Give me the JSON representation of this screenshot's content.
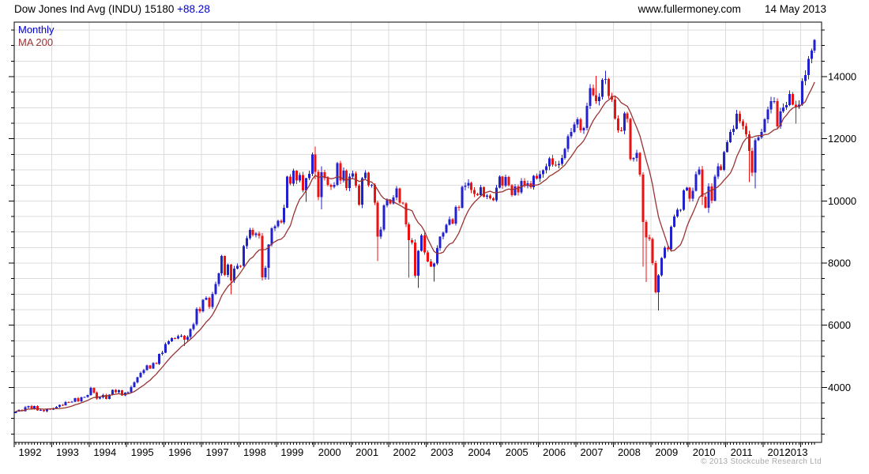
{
  "header": {
    "symbol": "Dow Jones Ind Avg (INDU)",
    "last": "15180",
    "change": "+88.28",
    "website": "www.fullermoney.com",
    "date": "14 May 2013"
  },
  "legend": {
    "series": [
      {
        "label": "Monthly",
        "color": "#0000cc"
      },
      {
        "label": "MA 200",
        "color": "#993333"
      }
    ]
  },
  "footer": {
    "copyright": "© 2013 Stockcube Research Ltd"
  },
  "chart_data": {
    "type": "candlestick",
    "symbol": "Dow Jones Ind Avg (INDU)",
    "interval": "Monthly",
    "overlay": "MA 200",
    "legend_position": "top-left",
    "grid": true,
    "x_start": "1992-01",
    "x_end": "2013-05",
    "x_tick_labels": [
      "1992",
      "1993",
      "1994",
      "1995",
      "1996",
      "1997",
      "1998",
      "1999",
      "2000",
      "2001",
      "2002",
      "2003",
      "2004",
      "2005",
      "2006",
      "2007",
      "2008",
      "2009",
      "2010",
      "2011",
      "2012",
      "2013"
    ],
    "y_axis": {
      "side": "right",
      "ticks": [
        4000,
        6000,
        8000,
        10000,
        12000,
        14000
      ],
      "minor_step": 500,
      "range": [
        2227,
        15756
      ]
    },
    "prev_close": 3169,
    "monthly_closes": [
      3223,
      3268,
      3236,
      3359,
      3397,
      3319,
      3394,
      3257,
      3272,
      3226,
      3305,
      3301,
      3310,
      3371,
      3435,
      3428,
      3527,
      3516,
      3540,
      3651,
      3555,
      3681,
      3684,
      3754,
      3978,
      3832,
      3636,
      3682,
      3758,
      3625,
      3765,
      3913,
      3843,
      3908,
      3739,
      3834,
      3844,
      4011,
      4157,
      4321,
      4465,
      4556,
      4708,
      4610,
      4789,
      4756,
      5075,
      5117,
      5395,
      5486,
      5587,
      5569,
      5643,
      5655,
      5529,
      5616,
      5882,
      6029,
      6522,
      6448,
      6813,
      6878,
      6584,
      7009,
      7331,
      7673,
      8223,
      7622,
      7945,
      7442,
      7823,
      7908,
      7907,
      8546,
      8800,
      9063,
      8900,
      8952,
      8883,
      7539,
      7843,
      8592,
      9117,
      9181,
      9359,
      9307,
      9786,
      10789,
      10560,
      10971,
      10655,
      10829,
      10337,
      10730,
      10878,
      11497,
      10941,
      10128,
      10922,
      10734,
      10522,
      10448,
      10522,
      11215,
      10651,
      10971,
      10414,
      10787,
      10887,
      10495,
      9879,
      10735,
      10912,
      10502,
      10523,
      9950,
      8848,
      9075,
      9852,
      10021,
      9920,
      10106,
      10404,
      9946,
      9925,
      9243,
      8737,
      8664,
      7592,
      8397,
      8896,
      8342,
      8054,
      7891,
      7992,
      8480,
      8850,
      8985,
      9234,
      9416,
      9275,
      9801,
      9782,
      10454,
      10488,
      10584,
      10358,
      10226,
      10188,
      10435,
      10140,
      10174,
      10080,
      10027,
      10428,
      10783,
      10490,
      10766,
      10504,
      10193,
      10467,
      10275,
      10641,
      10482,
      10569,
      10440,
      10806,
      10718,
      10865,
      10993,
      11109,
      11367,
      11168,
      11150,
      11186,
      11381,
      11679,
      12081,
      12222,
      12463,
      12622,
      12269,
      12354,
      13063,
      13628,
      13409,
      13212,
      13358,
      13896,
      13930,
      13372,
      13265,
      12650,
      12266,
      12263,
      12820,
      12638,
      11350,
      11378,
      11544,
      10851,
      9325,
      8829,
      8776,
      8001,
      7063,
      7609,
      8168,
      8500,
      8447,
      9172,
      9496,
      9712,
      9713,
      10345,
      10428,
      10067,
      10325,
      10857,
      11009,
      10137,
      9774,
      10466,
      10015,
      10788,
      11118,
      11006,
      11578,
      11892,
      12226,
      12320,
      12811,
      12570,
      12414,
      12143,
      11614,
      10913,
      11955,
      12046,
      12218,
      12633,
      12952,
      13212,
      13214,
      12393,
      12880,
      13009,
      13091,
      13437,
      13096,
      13026,
      13104,
      13861,
      14054,
      14579,
      14840,
      15180
    ],
    "extremes": {
      "1996-07": {
        "low": 5330
      },
      "1997-10": {
        "low": 7000
      },
      "1998-08": {
        "low": 7440
      },
      "1998-09": {
        "low": 7467
      },
      "1998-10": {
        "low": 7467
      },
      "1999-10": {
        "low": 9976
      },
      "2000-01": {
        "high": 11750,
        "low": 10700
      },
      "2000-03": {
        "high": 11119,
        "low": 9731
      },
      "2001-09": {
        "low": 8062
      },
      "2002-07": {
        "low": 7532
      },
      "2002-10": {
        "low": 7197
      },
      "2003-03": {
        "low": 7397
      },
      "2007-07": {
        "high": 14022
      },
      "2007-10": {
        "high": 14198
      },
      "2008-10": {
        "low": 7882
      },
      "2008-11": {
        "low": 7392
      },
      "2009-03": {
        "low": 6469
      },
      "2010-05": {
        "low": 9869
      },
      "2010-07": {
        "low": 9614
      },
      "2011-08": {
        "low": 10604
      },
      "2011-10": {
        "low": 10404
      },
      "2012-11": {
        "low": 12494
      },
      "2013-05": {
        "high": 15215,
        "low": 14760
      }
    },
    "colors": {
      "up": "#2222cc",
      "down": "#ee1111",
      "ma": "#993333",
      "grid": "#dcdcdc",
      "border": "#000000",
      "accent_blue": "#0000cc",
      "text": "#000000",
      "copyright": "#a9a9a9"
    }
  }
}
